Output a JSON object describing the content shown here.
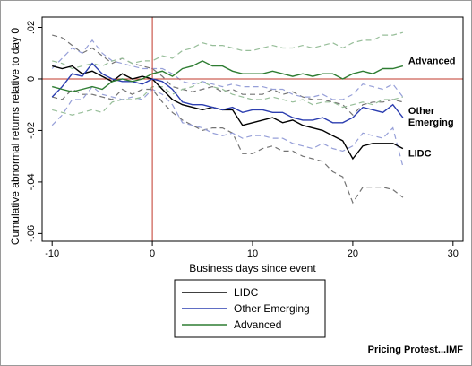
{
  "chart_data": {
    "type": "line",
    "title": "",
    "xlabel": "Business days since event",
    "ylabel": "Cumulative abnormal returns relative to day 0",
    "xlim": [
      -11,
      31
    ],
    "ylim": [
      -0.063,
      0.024
    ],
    "xticks": [
      -10,
      0,
      10,
      20,
      30
    ],
    "xtick_labels": [
      "-10",
      "0",
      "10",
      "20",
      "30"
    ],
    "yticks": [
      0.02,
      0,
      -0.02,
      -0.04,
      -0.06
    ],
    "ytick_labels": [
      ".02",
      "0",
      "-.02",
      "-.04",
      "-.06"
    ],
    "reference_lines": {
      "x": 0,
      "y": 0,
      "color": "#c0392b"
    },
    "grid": false,
    "legend_position": "bottom",
    "x": [
      -10,
      -9,
      -8,
      -7,
      -6,
      -5,
      -4,
      -3,
      -2,
      -1,
      0,
      1,
      2,
      3,
      4,
      5,
      6,
      7,
      8,
      9,
      10,
      11,
      12,
      13,
      14,
      15,
      16,
      17,
      18,
      19,
      20,
      21,
      22,
      23,
      24,
      25
    ],
    "series": [
      {
        "name": "LIDC",
        "color": "#000000",
        "end_label": "LIDC",
        "values": [
          0.005,
          0.004,
          0.005,
          0.002,
          0.003,
          0.001,
          -0.001,
          0.002,
          0,
          0.001,
          0,
          -0.004,
          -0.008,
          -0.01,
          -0.011,
          -0.012,
          -0.011,
          -0.012,
          -0.012,
          -0.018,
          -0.017,
          -0.016,
          -0.015,
          -0.017,
          -0.016,
          -0.018,
          -0.019,
          -0.02,
          -0.022,
          -0.024,
          -0.031,
          -0.026,
          -0.025,
          -0.025,
          -0.025,
          -0.027
        ],
        "band_upper": [
          0.017,
          0.016,
          0.013,
          0.01,
          0.012,
          0.009,
          0.006,
          0.008,
          0.006,
          0.005,
          0.004,
          0.001,
          -0.003,
          -0.004,
          -0.005,
          -0.004,
          -0.003,
          -0.005,
          -0.004,
          -0.006,
          -0.006,
          -0.006,
          -0.004,
          -0.006,
          -0.005,
          -0.007,
          -0.008,
          -0.008,
          -0.009,
          -0.01,
          -0.014,
          -0.01,
          -0.009,
          -0.009,
          -0.008,
          -0.009
        ],
        "band_lower": [
          -0.007,
          -0.008,
          -0.004,
          -0.006,
          -0.006,
          -0.007,
          -0.008,
          -0.004,
          -0.006,
          -0.004,
          -0.004,
          -0.009,
          -0.013,
          -0.016,
          -0.018,
          -0.02,
          -0.019,
          -0.019,
          -0.021,
          -0.029,
          -0.029,
          -0.027,
          -0.026,
          -0.028,
          -0.028,
          -0.03,
          -0.031,
          -0.032,
          -0.036,
          -0.038,
          -0.048,
          -0.042,
          -0.042,
          -0.042,
          -0.043,
          -0.046
        ]
      },
      {
        "name": "Other Emerging",
        "color": "#2c3eb0",
        "end_label": "Other\nEmerging",
        "values": [
          -0.007,
          -0.003,
          0.002,
          0.001,
          0.006,
          0.002,
          0,
          -0.001,
          -0.001,
          -0.002,
          0,
          -0.001,
          -0.004,
          -0.009,
          -0.01,
          -0.01,
          -0.011,
          -0.012,
          -0.011,
          -0.013,
          -0.012,
          -0.012,
          -0.013,
          -0.013,
          -0.015,
          -0.016,
          -0.016,
          -0.015,
          -0.017,
          -0.017,
          -0.015,
          -0.011,
          -0.012,
          -0.013,
          -0.01,
          -0.015
        ],
        "band_upper": [
          0.004,
          0.008,
          0.012,
          0.01,
          0.015,
          0.01,
          0.007,
          0.006,
          0.005,
          0.004,
          0.004,
          0.004,
          0.002,
          -0.001,
          -0.002,
          -0.001,
          -0.002,
          -0.003,
          -0.002,
          -0.003,
          -0.003,
          -0.003,
          -0.004,
          -0.004,
          -0.006,
          -0.007,
          -0.007,
          -0.006,
          -0.008,
          -0.008,
          -0.006,
          -0.002,
          -0.003,
          -0.004,
          -0.002,
          -0.007
        ],
        "band_lower": [
          -0.018,
          -0.014,
          -0.008,
          -0.008,
          -0.003,
          -0.006,
          -0.007,
          -0.008,
          -0.007,
          -0.008,
          -0.004,
          -0.006,
          -0.01,
          -0.017,
          -0.018,
          -0.019,
          -0.021,
          -0.022,
          -0.021,
          -0.023,
          -0.022,
          -0.022,
          -0.023,
          -0.023,
          -0.025,
          -0.026,
          -0.027,
          -0.025,
          -0.027,
          -0.028,
          -0.026,
          -0.021,
          -0.022,
          -0.023,
          -0.019,
          -0.034
        ]
      },
      {
        "name": "Advanced",
        "color": "#2e7d32",
        "end_label": "Advanced",
        "values": [
          -0.003,
          -0.004,
          -0.005,
          -0.004,
          -0.003,
          -0.004,
          -0.001,
          0,
          -0.001,
          0,
          0.002,
          0.003,
          0.001,
          0.004,
          0.005,
          0.007,
          0.005,
          0.005,
          0.003,
          0.002,
          0.002,
          0.002,
          0.003,
          0.002,
          0.001,
          0.002,
          0.001,
          0.002,
          0.002,
          0,
          0.002,
          0.003,
          0.002,
          0.004,
          0.004,
          0.005
        ],
        "band_upper": [
          0.007,
          0.006,
          0.004,
          0.005,
          0.006,
          0.005,
          0.007,
          0.008,
          0.006,
          0.007,
          0.007,
          0.009,
          0.008,
          0.011,
          0.012,
          0.014,
          0.013,
          0.013,
          0.012,
          0.011,
          0.011,
          0.012,
          0.013,
          0.012,
          0.012,
          0.013,
          0.012,
          0.013,
          0.014,
          0.012,
          0.014,
          0.015,
          0.015,
          0.017,
          0.017,
          0.018
        ],
        "band_lower": [
          -0.012,
          -0.013,
          -0.014,
          -0.013,
          -0.012,
          -0.013,
          -0.009,
          -0.008,
          -0.008,
          -0.007,
          -0.003,
          -0.003,
          -0.006,
          -0.004,
          -0.003,
          -0.001,
          -0.003,
          -0.004,
          -0.006,
          -0.007,
          -0.008,
          -0.008,
          -0.007,
          -0.008,
          -0.009,
          -0.008,
          -0.01,
          -0.009,
          -0.009,
          -0.011,
          -0.01,
          -0.009,
          -0.01,
          -0.008,
          -0.008,
          -0.007
        ]
      }
    ]
  },
  "credit": "Pricing Protest...IMF"
}
